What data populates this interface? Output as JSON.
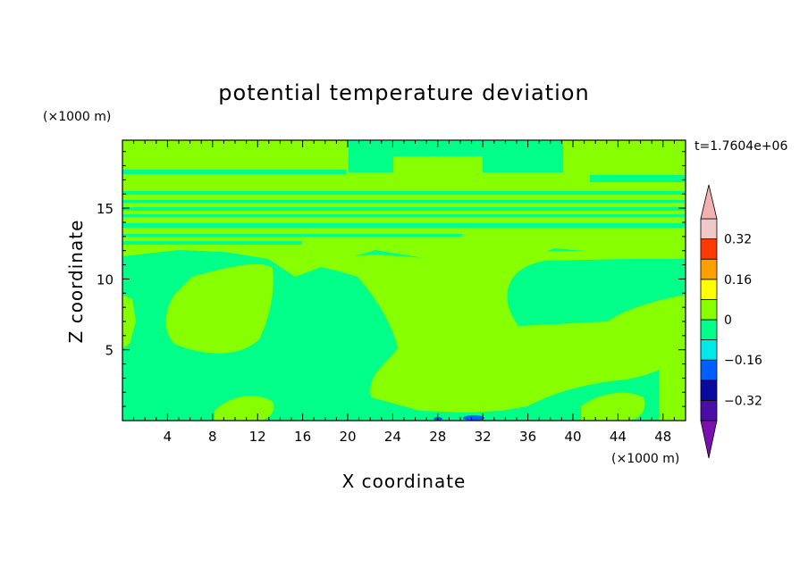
{
  "chart_data": {
    "type": "heatmap",
    "title": "potential temperature deviation",
    "xlabel": "X coordinate",
    "ylabel": "Z coordinate",
    "x_units": "(×1000 m)",
    "y_units": "(×1000 m)",
    "time_label": "t=1.7604e+06",
    "xlim": [
      0,
      50
    ],
    "ylim": [
      0,
      19.8
    ],
    "x_ticks": [
      "4",
      "8",
      "12",
      "16",
      "20",
      "24",
      "28",
      "32",
      "36",
      "40",
      "44",
      "48"
    ],
    "y_ticks": [
      "5",
      "10",
      "15"
    ],
    "colorbar": {
      "levels": [
        -0.4,
        -0.32,
        -0.24,
        -0.16,
        -0.08,
        0,
        0.08,
        0.16,
        0.24,
        0.32,
        0.4
      ],
      "colors": [
        "#4a0da6",
        "#0a0aa0",
        "#0060ff",
        "#00e8e8",
        "#00ff88",
        "#88ff00",
        "#ffff00",
        "#ffa000",
        "#ff3a00",
        "#f0c8c8"
      ],
      "under_color": "#7a10b0",
      "over_color": "#f2b2b2",
      "tick_labels": [
        "0.32",
        "0.16",
        "0",
        "−0.16",
        "−0.32"
      ]
    },
    "field_colors": {
      "negative_small": "#00ff88",
      "positive_small": "#88ff00",
      "negative_medium": "#0060ff"
    }
  }
}
